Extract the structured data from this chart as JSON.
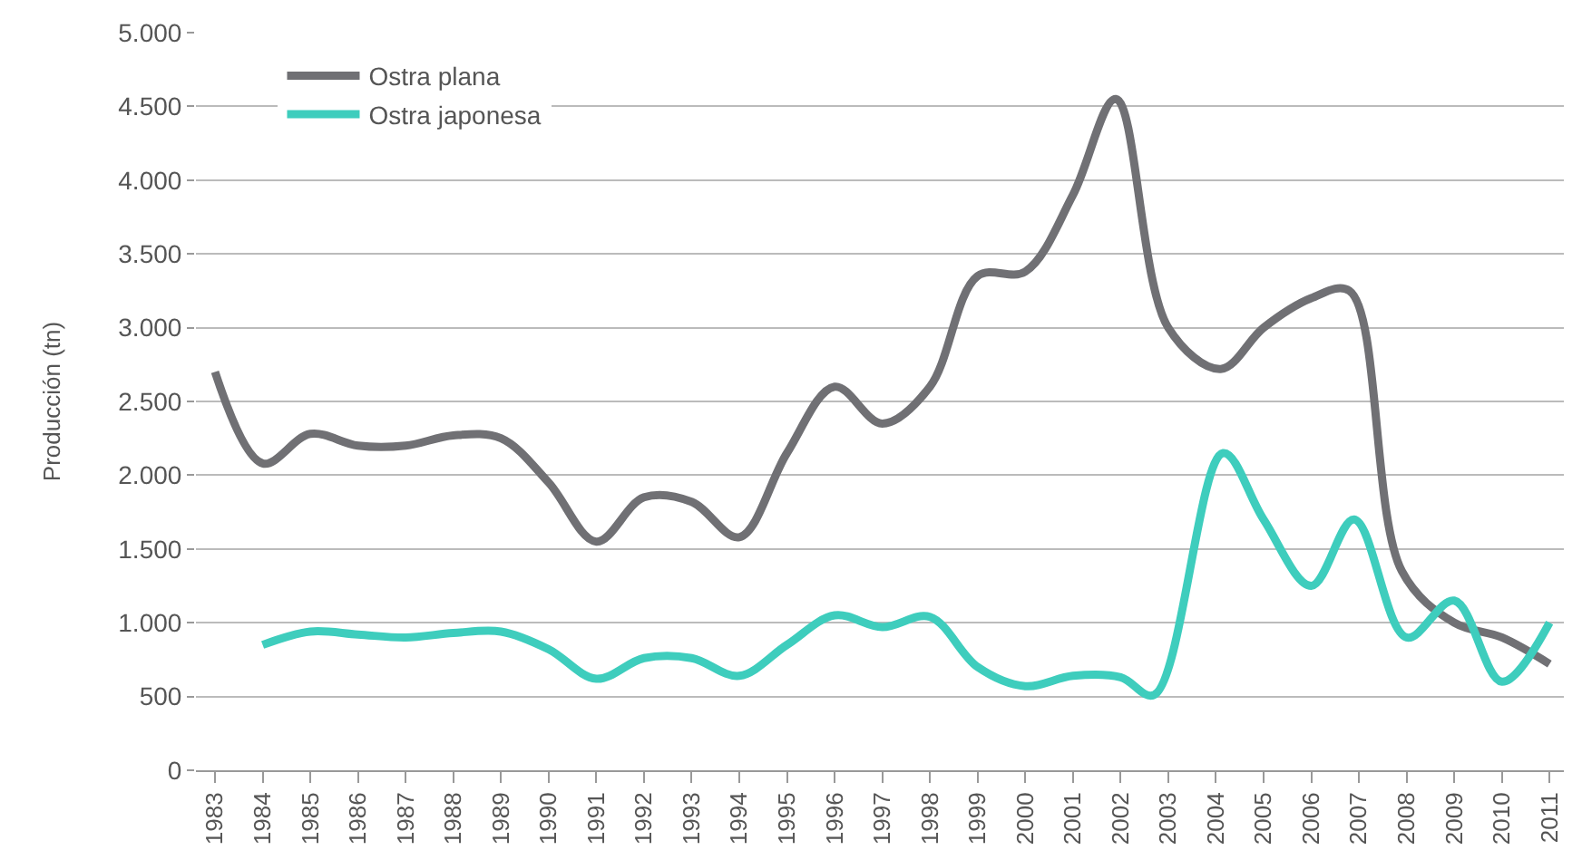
{
  "chart_data": {
    "type": "line",
    "ylabel": "Producción (tn)",
    "legend": "top left",
    "grid": "y",
    "line_style": "solid",
    "marker": "none",
    "xlim": [
      1982.6,
      2011.3
    ],
    "xticks": [
      1983,
      1984,
      1985,
      1986,
      1987,
      1988,
      1989,
      1990,
      1991,
      1992,
      1993,
      1994,
      1995,
      1996,
      1997,
      1998,
      1999,
      2000,
      2001,
      2002,
      2003,
      2004,
      2005,
      2006,
      2007,
      2008,
      2009,
      2010,
      2011
    ],
    "ylim": [
      0,
      5000
    ],
    "yticks": [
      {
        "value": 0,
        "label": "0"
      },
      {
        "value": 500,
        "label": "500"
      },
      {
        "value": 1000,
        "label": "1.000"
      },
      {
        "value": 1500,
        "label": "1.500"
      },
      {
        "value": 2000,
        "label": "2.000"
      },
      {
        "value": 2500,
        "label": "2.500"
      },
      {
        "value": 3000,
        "label": "3.000"
      },
      {
        "value": 3500,
        "label": "3.500"
      },
      {
        "value": 4000,
        "label": "4.000"
      },
      {
        "value": 4500,
        "label": "4.500"
      },
      {
        "value": 5000,
        "label": "5.000"
      }
    ],
    "series": [
      {
        "name": "Ostra plana",
        "color": "#707074",
        "x": [
          1983,
          1984,
          1985,
          1986,
          1987,
          1988,
          1989,
          1990,
          1991,
          1992,
          1993,
          1994,
          1995,
          1996,
          1997,
          1998,
          1999,
          2000,
          2001,
          2001.9,
          2003,
          2004.1,
          2005,
          2006,
          2006.8,
          2007.9,
          2009,
          2010,
          2011
        ],
        "values": [
          2700,
          2080,
          2280,
          2200,
          2200,
          2270,
          2250,
          1950,
          1550,
          1850,
          1820,
          1580,
          2150,
          2600,
          2350,
          2600,
          3350,
          3380,
          3900,
          4550,
          3000,
          2720,
          3000,
          3200,
          3250,
          1350,
          1000,
          900,
          720
        ]
      },
      {
        "name": "Ostra japonesa",
        "color": "#3ecdbd",
        "x": [
          1984,
          1985,
          1986,
          1987,
          1988,
          1989,
          1990,
          1991,
          1992,
          1993,
          1994,
          1995,
          1996,
          1997,
          1998,
          1999,
          2000,
          2001,
          2002,
          2002.7,
          2004.15,
          2005,
          2006,
          2006.9,
          2008,
          2009,
          2010,
          2011
        ],
        "values": [
          850,
          940,
          920,
          900,
          930,
          940,
          820,
          620,
          760,
          760,
          640,
          850,
          1050,
          970,
          1040,
          700,
          570,
          640,
          630,
          510,
          2150,
          1700,
          1250,
          1700,
          900,
          1150,
          600,
          1000
        ]
      }
    ]
  }
}
